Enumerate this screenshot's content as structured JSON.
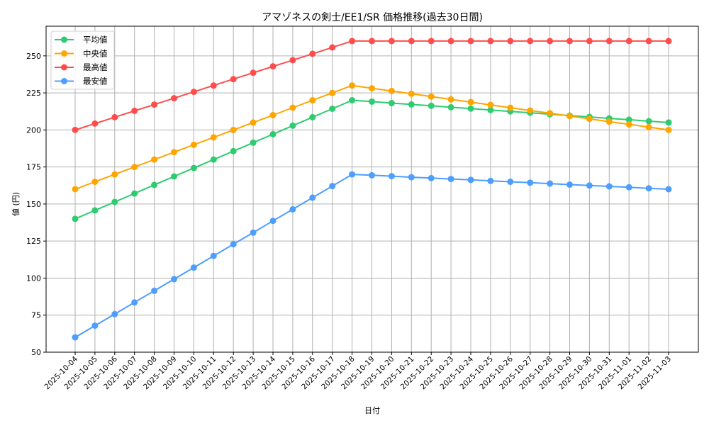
{
  "chart_data": {
    "type": "line",
    "title": "アマゾネスの剣士/EE1/SR 価格推移(過去30日間)",
    "xlabel": "日付",
    "ylabel": "値 (円)",
    "ylim": [
      50,
      270
    ],
    "yticks": [
      50,
      75,
      100,
      125,
      150,
      175,
      200,
      225,
      250
    ],
    "grid": true,
    "legend_position": "upper left",
    "x": [
      "2025-10-04",
      "2025-10-05",
      "2025-10-06",
      "2025-10-07",
      "2025-10-08",
      "2025-10-09",
      "2025-10-10",
      "2025-10-11",
      "2025-10-12",
      "2025-10-13",
      "2025-10-14",
      "2025-10-15",
      "2025-10-16",
      "2025-10-17",
      "2025-10-18",
      "2025-10-19",
      "2025-10-20",
      "2025-10-21",
      "2025-10-22",
      "2025-10-23",
      "2025-10-24",
      "2025-10-25",
      "2025-10-26",
      "2025-10-27",
      "2025-10-28",
      "2025-10-29",
      "2025-10-30",
      "2025-10-31",
      "2025-11-01",
      "2025-11-02",
      "2025-11-03"
    ],
    "series": [
      {
        "name": "平均値",
        "color": "#2ecc71",
        "values": [
          140.0,
          145.7,
          151.4,
          157.1,
          162.9,
          168.6,
          174.3,
          180.0,
          185.7,
          191.4,
          197.1,
          202.9,
          208.6,
          214.3,
          220.0,
          219.1,
          218.1,
          217.2,
          216.3,
          215.3,
          214.4,
          213.4,
          212.5,
          211.6,
          210.6,
          209.7,
          208.8,
          207.8,
          206.9,
          205.9,
          205.0
        ]
      },
      {
        "name": "中央値",
        "color": "#ffa500",
        "values": [
          160,
          165,
          170,
          175,
          180,
          185,
          190,
          195,
          200,
          205,
          210,
          215,
          220,
          225,
          230,
          228.1,
          226.3,
          224.4,
          222.5,
          220.6,
          218.8,
          216.9,
          215.0,
          213.1,
          211.3,
          209.4,
          207.5,
          205.6,
          203.8,
          201.9,
          200.0
        ]
      },
      {
        "name": "最高値",
        "color": "#ff4d4d",
        "values": [
          200.0,
          204.3,
          208.6,
          212.9,
          217.1,
          221.4,
          225.7,
          230.0,
          234.3,
          238.6,
          242.9,
          247.1,
          251.4,
          255.7,
          260,
          260,
          260,
          260,
          260,
          260,
          260,
          260,
          260,
          260,
          260,
          260,
          260,
          260,
          260,
          260,
          260
        ]
      },
      {
        "name": "最安値",
        "color": "#4d9eff",
        "values": [
          60.0,
          67.9,
          75.7,
          83.6,
          91.4,
          99.3,
          107.1,
          115.0,
          122.9,
          130.7,
          138.6,
          146.4,
          154.3,
          162.1,
          170.0,
          169.4,
          168.8,
          168.1,
          167.5,
          166.9,
          166.3,
          165.6,
          165.0,
          164.4,
          163.8,
          163.1,
          162.5,
          161.9,
          161.3,
          160.6,
          160.0
        ]
      }
    ]
  }
}
